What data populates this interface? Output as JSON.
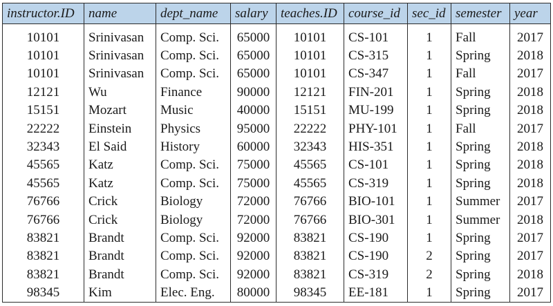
{
  "table": {
    "headers": [
      "instructor.ID",
      "name",
      "dept_name",
      "salary",
      "teaches.ID",
      "course_id",
      "sec_id",
      "semester",
      "year"
    ],
    "rows": [
      [
        "10101",
        "Srinivasan",
        "Comp. Sci.",
        "65000",
        "10101",
        "CS-101",
        "1",
        "Fall",
        "2017"
      ],
      [
        "10101",
        "Srinivasan",
        "Comp. Sci.",
        "65000",
        "10101",
        "CS-315",
        "1",
        "Spring",
        "2018"
      ],
      [
        "10101",
        "Srinivasan",
        "Comp. Sci.",
        "65000",
        "10101",
        "CS-347",
        "1",
        "Fall",
        "2017"
      ],
      [
        "12121",
        "Wu",
        "Finance",
        "90000",
        "12121",
        "FIN-201",
        "1",
        "Spring",
        "2018"
      ],
      [
        "15151",
        "Mozart",
        "Music",
        "40000",
        "15151",
        "MU-199",
        "1",
        "Spring",
        "2018"
      ],
      [
        "22222",
        "Einstein",
        "Physics",
        "95000",
        "22222",
        "PHY-101",
        "1",
        "Fall",
        "2017"
      ],
      [
        "32343",
        "El Said",
        "History",
        "60000",
        "32343",
        "HIS-351",
        "1",
        "Spring",
        "2018"
      ],
      [
        "45565",
        "Katz",
        "Comp. Sci.",
        "75000",
        "45565",
        "CS-101",
        "1",
        "Spring",
        "2018"
      ],
      [
        "45565",
        "Katz",
        "Comp. Sci.",
        "75000",
        "45565",
        "CS-319",
        "1",
        "Spring",
        "2018"
      ],
      [
        "76766",
        "Crick",
        "Biology",
        "72000",
        "76766",
        "BIO-101",
        "1",
        "Summer",
        "2017"
      ],
      [
        "76766",
        "Crick",
        "Biology",
        "72000",
        "76766",
        "BIO-301",
        "1",
        "Summer",
        "2018"
      ],
      [
        "83821",
        "Brandt",
        "Comp. Sci.",
        "92000",
        "83821",
        "CS-190",
        "1",
        "Spring",
        "2017"
      ],
      [
        "83821",
        "Brandt",
        "Comp. Sci.",
        "92000",
        "83821",
        "CS-190",
        "2",
        "Spring",
        "2017"
      ],
      [
        "83821",
        "Brandt",
        "Comp. Sci.",
        "92000",
        "83821",
        "CS-319",
        "2",
        "Spring",
        "2018"
      ],
      [
        "98345",
        "Kim",
        "Elec. Eng.",
        "80000",
        "98345",
        "EE-181",
        "1",
        "Spring",
        "2017"
      ]
    ]
  },
  "colors": {
    "header_background": "#bcd4ea",
    "border": "#2b2b2b",
    "text": "#1a1a1a"
  }
}
